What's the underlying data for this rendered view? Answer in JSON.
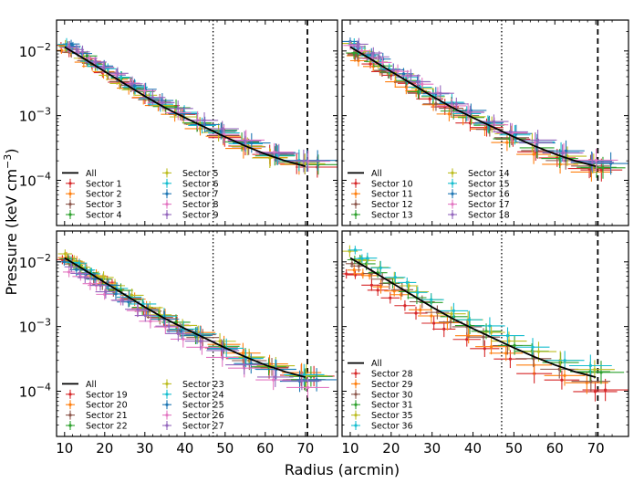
{
  "chart_data": {
    "type": "scatter",
    "xlabel": "Radius (arcmin)",
    "ylabel": "Pressure (keV cm$^{-3}$)",
    "xlim": [
      8,
      78
    ],
    "ylim": [
      2e-05,
      0.03
    ],
    "yscale": "log",
    "x_ticks": [
      10,
      20,
      30,
      40,
      50,
      60,
      70
    ],
    "y_ticks": [
      {
        "value": 0.0001,
        "label": "10",
        "exp": "−4"
      },
      {
        "value": 0.001,
        "label": "10",
        "exp": "−3"
      },
      {
        "value": 0.01,
        "label": "10",
        "exp": "−2"
      }
    ],
    "vlines": [
      {
        "x": 47,
        "style": "dotted"
      },
      {
        "x": 70.5,
        "style": "dashed"
      }
    ],
    "all_profile": {
      "name": "All",
      "color": "#000000",
      "x": [
        10,
        15,
        20,
        25,
        30,
        35,
        40,
        45,
        50,
        55,
        60,
        65,
        70
      ],
      "y": [
        0.0115,
        0.0075,
        0.0048,
        0.0031,
        0.002,
        0.00133,
        0.00093,
        0.00066,
        0.00047,
        0.00034,
        0.000255,
        0.0002,
        0.000165
      ]
    },
    "panels": [
      {
        "id": "top-left",
        "show_x_ticklabels": false,
        "show_y_ticklabels": true,
        "legend_columns": [
          [
            "All",
            "Sector 1",
            "Sector 2",
            "Sector 3",
            "Sector 4"
          ],
          [
            "Sector 5",
            "Sector 6",
            "Sector 7",
            "Sector 8",
            "Sector 9"
          ]
        ],
        "series": [
          {
            "name": "Sector 1",
            "color": "#d62728",
            "factor": 1.0
          },
          {
            "name": "Sector 2",
            "color": "#ff7f0e",
            "factor": 0.95
          },
          {
            "name": "Sector 3",
            "color": "#8c564b",
            "factor": 1.05
          },
          {
            "name": "Sector 4",
            "color": "#2ca02c",
            "factor": 1.12
          },
          {
            "name": "Sector 5",
            "color": "#bcbd22",
            "factor": 1.0
          },
          {
            "name": "Sector 6",
            "color": "#17becf",
            "factor": 1.1
          },
          {
            "name": "Sector 7",
            "color": "#1f77b4",
            "factor": 1.2
          },
          {
            "name": "Sector 8",
            "color": "#e377c2",
            "factor": 1.15
          },
          {
            "name": "Sector 9",
            "color": "#9467bd",
            "factor": 1.18
          }
        ]
      },
      {
        "id": "top-right",
        "show_x_ticklabels": false,
        "show_y_ticklabels": false,
        "legend_columns": [
          [
            "All",
            "Sector 10",
            "Sector 11",
            "Sector 12",
            "Sector 13"
          ],
          [
            "Sector 14",
            "Sector 15",
            "Sector 16",
            "Sector 17",
            "Sector 18"
          ]
        ],
        "series": [
          {
            "name": "Sector 10",
            "color": "#d62728",
            "factor": 0.85
          },
          {
            "name": "Sector 11",
            "color": "#ff7f0e",
            "factor": 0.8
          },
          {
            "name": "Sector 12",
            "color": "#8c564b",
            "factor": 0.9
          },
          {
            "name": "Sector 13",
            "color": "#2ca02c",
            "factor": 0.95
          },
          {
            "name": "Sector 14",
            "color": "#bcbd22",
            "factor": 1.1
          },
          {
            "name": "Sector 15",
            "color": "#17becf",
            "factor": 1.12
          },
          {
            "name": "Sector 16",
            "color": "#1f77b4",
            "factor": 1.2
          },
          {
            "name": "Sector 17",
            "color": "#e377c2",
            "factor": 1.15
          },
          {
            "name": "Sector 18",
            "color": "#9467bd",
            "factor": 1.22
          }
        ]
      },
      {
        "id": "bottom-left",
        "show_x_ticklabels": true,
        "show_y_ticklabels": true,
        "legend_columns": [
          [
            "All",
            "Sector 19",
            "Sector 20",
            "Sector 21",
            "Sector 22"
          ],
          [
            "Sector 23",
            "Sector 24",
            "Sector 25",
            "Sector 26",
            "Sector 27"
          ]
        ],
        "series": [
          {
            "name": "Sector 19",
            "color": "#d62728",
            "factor": 1.0
          },
          {
            "name": "Sector 20",
            "color": "#ff7f0e",
            "factor": 1.05
          },
          {
            "name": "Sector 21",
            "color": "#8c564b",
            "factor": 0.95
          },
          {
            "name": "Sector 22",
            "color": "#2ca02c",
            "factor": 1.0
          },
          {
            "name": "Sector 23",
            "color": "#bcbd22",
            "factor": 1.1
          },
          {
            "name": "Sector 24",
            "color": "#17becf",
            "factor": 1.05
          },
          {
            "name": "Sector 25",
            "color": "#1f77b4",
            "factor": 0.9
          },
          {
            "name": "Sector 26",
            "color": "#e377c2",
            "factor": 0.7
          },
          {
            "name": "Sector 27",
            "color": "#9467bd",
            "factor": 0.8
          }
        ]
      },
      {
        "id": "bottom-right",
        "show_x_ticklabels": true,
        "show_y_ticklabels": false,
        "legend_columns": [
          [
            "All",
            "Sector 28",
            "Sector 29",
            "Sector 30",
            "Sector 31",
            "Sector 35",
            "Sector 36"
          ]
        ],
        "series": [
          {
            "name": "Sector 28",
            "color": "#d62728",
            "factor": 0.6
          },
          {
            "name": "Sector 29",
            "color": "#ff7f0e",
            "factor": 0.75
          },
          {
            "name": "Sector 30",
            "color": "#8c564b",
            "factor": 0.9
          },
          {
            "name": "Sector 31",
            "color": "#2ca02c",
            "factor": 1.1
          },
          {
            "name": "Sector 35",
            "color": "#bcbd22",
            "factor": 1.25
          },
          {
            "name": "Sector 36",
            "color": "#17becf",
            "factor": 1.35
          }
        ]
      }
    ]
  }
}
